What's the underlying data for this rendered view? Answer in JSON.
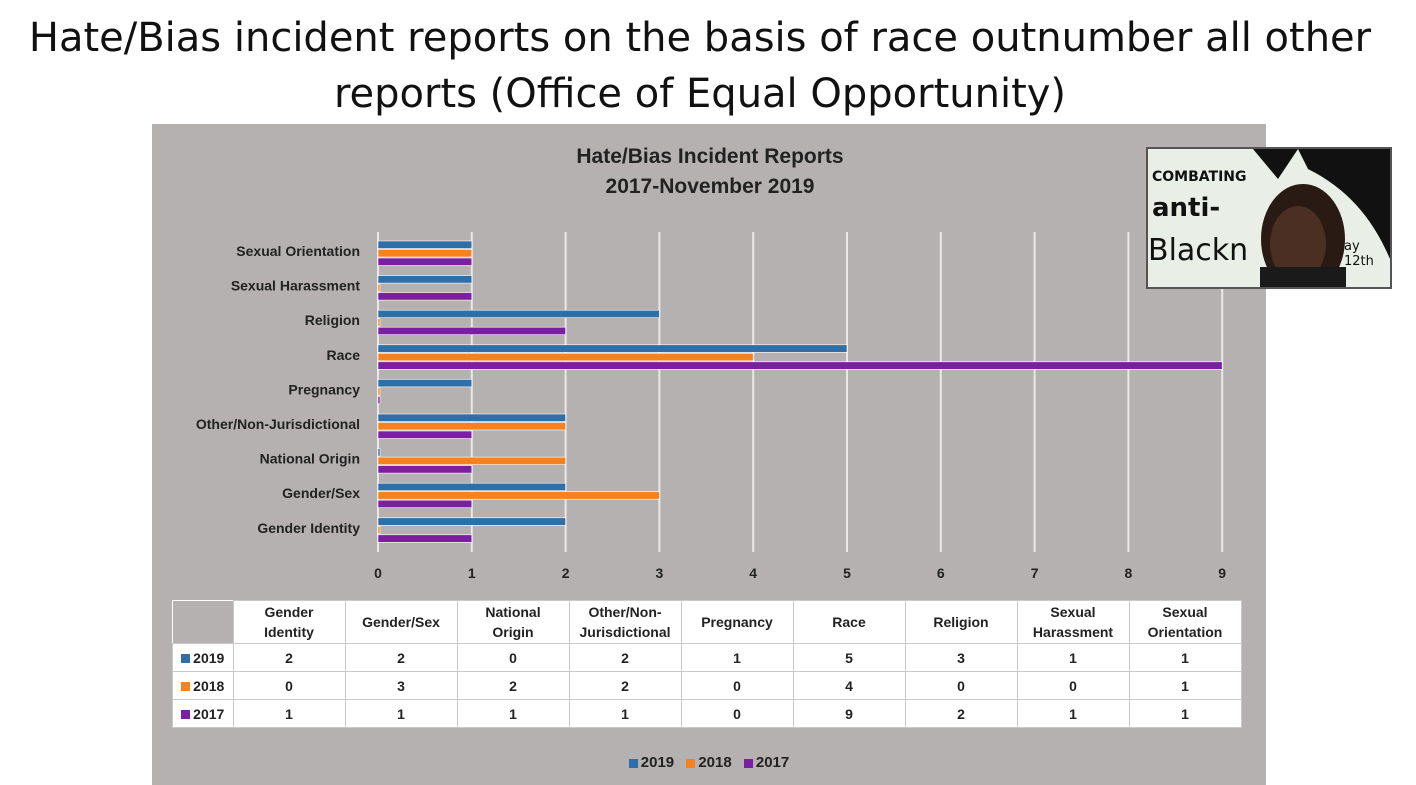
{
  "slide_title": "Hate/Bias incident reports on the basis of race outnumber all other reports (Office of Equal Opportunity)",
  "colors": {
    "s2019": "#2e6fa7",
    "s2018": "#f5821f",
    "s2017": "#7a1fa2",
    "panel": "#b5b1b1"
  },
  "chart_data": {
    "type": "bar",
    "orientation": "horizontal",
    "title_line1": "Hate/Bias Incident Reports",
    "title_line2": "2017-November 2019",
    "categories": [
      "Gender Identity",
      "Gender/Sex",
      "National Origin",
      "Other/Non-Jurisdictional",
      "Pregnancy",
      "Race",
      "Religion",
      "Sexual Harassment",
      "Sexual Orientation"
    ],
    "table_headers": [
      "Gender\nIdentity",
      "Gender/Sex",
      "National\nOrigin",
      "Other/Non-\nJurisdictional",
      "Pregnancy",
      "Race",
      "Religion",
      "Sexual\nHarassment",
      "Sexual\nOrientation"
    ],
    "series": [
      {
        "name": "2019",
        "values": [
          2,
          2,
          0,
          2,
          1,
          5,
          3,
          1,
          1
        ]
      },
      {
        "name": "2018",
        "values": [
          0,
          3,
          2,
          2,
          0,
          4,
          0,
          0,
          1
        ]
      },
      {
        "name": "2017",
        "values": [
          1,
          1,
          1,
          1,
          0,
          9,
          2,
          1,
          1
        ]
      }
    ],
    "xlim": [
      0,
      9
    ],
    "xticks": [
      0,
      1,
      2,
      3,
      4,
      5,
      6,
      7,
      8,
      9
    ],
    "grid": true,
    "legend": "bottom"
  },
  "webcam": {
    "line1": "COMBATING",
    "line2": "anti-",
    "line3": "Blackn",
    "line4": "ay 12th"
  }
}
